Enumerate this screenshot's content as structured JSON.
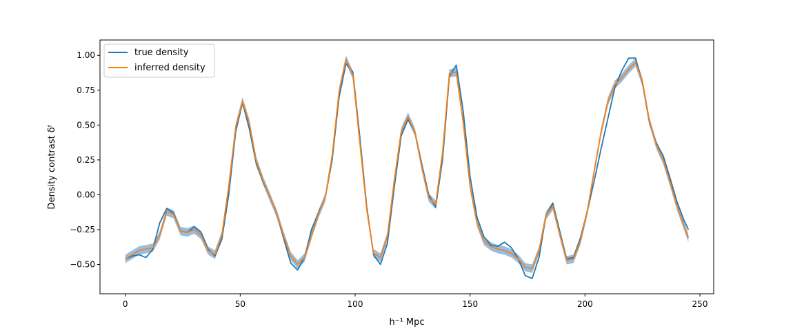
{
  "chart_data": {
    "type": "line",
    "title": "",
    "xlabel": "h⁻¹ Mpc",
    "ylabel": "Density contrast δᶠ",
    "xlim": [
      -11,
      256
    ],
    "ylim": [
      -0.71,
      1.11
    ],
    "xticks": [
      0,
      50,
      100,
      150,
      200,
      250
    ],
    "xtick_labels": [
      "0",
      "50",
      "100",
      "150",
      "200",
      "250"
    ],
    "yticks": [
      -0.5,
      -0.25,
      0.0,
      0.25,
      0.5,
      0.75,
      1.0
    ],
    "ytick_labels": [
      "−0.50",
      "−0.25",
      "0.00",
      "0.25",
      "0.50",
      "0.75",
      "1.00"
    ],
    "grid": false,
    "legend": {
      "position": "top-left"
    },
    "colors": {
      "true": "#1f77b4",
      "inferred": "#ff7f0e",
      "band": "#6fa8dc"
    },
    "x": [
      0,
      3,
      6,
      9,
      12,
      15,
      18,
      21,
      24,
      27,
      30,
      33,
      36,
      39,
      42,
      45,
      48,
      51,
      54,
      57,
      60,
      63,
      66,
      69,
      72,
      75,
      78,
      81,
      84,
      87,
      90,
      93,
      96,
      99,
      102,
      105,
      108,
      111,
      114,
      117,
      120,
      123,
      126,
      129,
      132,
      135,
      138,
      141,
      144,
      147,
      150,
      153,
      156,
      159,
      162,
      165,
      168,
      171,
      174,
      177,
      180,
      183,
      186,
      189,
      192,
      195,
      198,
      201,
      204,
      207,
      210,
      213,
      216,
      219,
      222,
      225,
      228,
      231,
      234,
      237,
      240,
      243,
      245
    ],
    "series": [
      {
        "name": "true density",
        "values": [
          -0.46,
          -0.44,
          -0.43,
          -0.45,
          -0.39,
          -0.2,
          -0.1,
          -0.13,
          -0.26,
          -0.27,
          -0.23,
          -0.27,
          -0.39,
          -0.44,
          -0.32,
          0.0,
          0.45,
          0.66,
          0.47,
          0.22,
          0.09,
          -0.02,
          -0.14,
          -0.32,
          -0.49,
          -0.54,
          -0.45,
          -0.25,
          -0.13,
          -0.02,
          0.25,
          0.7,
          0.94,
          0.88,
          0.42,
          -0.08,
          -0.43,
          -0.5,
          -0.35,
          0.05,
          0.42,
          0.54,
          0.45,
          0.22,
          0.0,
          -0.09,
          0.25,
          0.85,
          0.93,
          0.6,
          0.13,
          -0.16,
          -0.3,
          -0.36,
          -0.37,
          -0.34,
          -0.38,
          -0.46,
          -0.58,
          -0.6,
          -0.45,
          -0.15,
          -0.06,
          -0.26,
          -0.46,
          -0.45,
          -0.31,
          -0.12,
          0.1,
          0.33,
          0.55,
          0.77,
          0.89,
          0.98,
          0.98,
          0.8,
          0.52,
          0.37,
          0.28,
          0.12,
          -0.05,
          -0.18,
          -0.25
        ]
      },
      {
        "name": "inferred density",
        "values": [
          -0.46,
          -0.43,
          -0.4,
          -0.39,
          -0.38,
          -0.29,
          -0.12,
          -0.14,
          -0.26,
          -0.27,
          -0.25,
          -0.29,
          -0.4,
          -0.43,
          -0.29,
          0.06,
          0.48,
          0.67,
          0.51,
          0.24,
          0.1,
          -0.02,
          -0.14,
          -0.3,
          -0.44,
          -0.5,
          -0.45,
          -0.29,
          -0.14,
          -0.02,
          0.28,
          0.74,
          0.97,
          0.86,
          0.38,
          -0.1,
          -0.42,
          -0.45,
          -0.3,
          0.1,
          0.45,
          0.56,
          0.45,
          0.2,
          -0.02,
          -0.07,
          0.3,
          0.87,
          0.88,
          0.52,
          0.06,
          -0.2,
          -0.33,
          -0.37,
          -0.39,
          -0.4,
          -0.42,
          -0.46,
          -0.52,
          -0.53,
          -0.4,
          -0.15,
          -0.08,
          -0.28,
          -0.47,
          -0.46,
          -0.33,
          -0.12,
          0.17,
          0.45,
          0.67,
          0.79,
          0.84,
          0.9,
          0.95,
          0.81,
          0.53,
          0.36,
          0.25,
          0.09,
          -0.08,
          -0.22,
          -0.31
        ]
      }
    ],
    "band_halfwidth": 0.03
  }
}
